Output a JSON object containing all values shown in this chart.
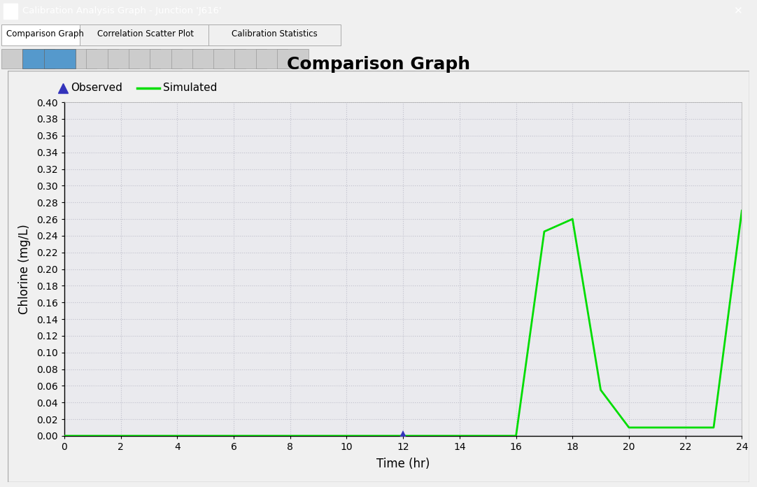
{
  "title": "Comparison Graph",
  "xlabel": "Time (hr)",
  "ylabel": "Chlorine (mg/L)",
  "xlim": [
    0,
    24
  ],
  "ylim": [
    0.0,
    0.4
  ],
  "yticks": [
    0.0,
    0.02,
    0.04,
    0.06,
    0.08,
    0.1,
    0.12,
    0.14,
    0.16,
    0.18,
    0.2,
    0.22,
    0.24,
    0.26,
    0.28,
    0.3,
    0.32,
    0.34,
    0.36,
    0.38,
    0.4
  ],
  "xticks": [
    0,
    2,
    4,
    6,
    8,
    10,
    12,
    14,
    16,
    18,
    20,
    22,
    24
  ],
  "simulated_x": [
    0,
    16,
    17,
    18,
    19,
    20,
    21,
    22,
    23,
    24
  ],
  "simulated_y": [
    0.0,
    0.0,
    0.245,
    0.26,
    0.055,
    0.01,
    0.01,
    0.01,
    0.01,
    0.27
  ],
  "observed_x": [
    12
  ],
  "observed_y": [
    0.002
  ],
  "simulated_color": "#00dd00",
  "observed_color": "#3333bb",
  "plot_bg_color": "#eaeaee",
  "outer_bg_color": "#f0f0f0",
  "grid_color": "#c0c0cc",
  "title_bar_color": "#1a6699",
  "title_fontsize": 18,
  "axis_label_fontsize": 12,
  "tick_fontsize": 10,
  "legend_fontsize": 11,
  "line_width": 2.0,
  "titlebar_text": "Calibration Analysis Graph - Junction 'J616'",
  "tab_labels": [
    "Comparison Graph",
    "Correlation Scatter Plot",
    "Calibration Statistics"
  ],
  "legend_obs": "Observed",
  "legend_sim": "Simulated"
}
